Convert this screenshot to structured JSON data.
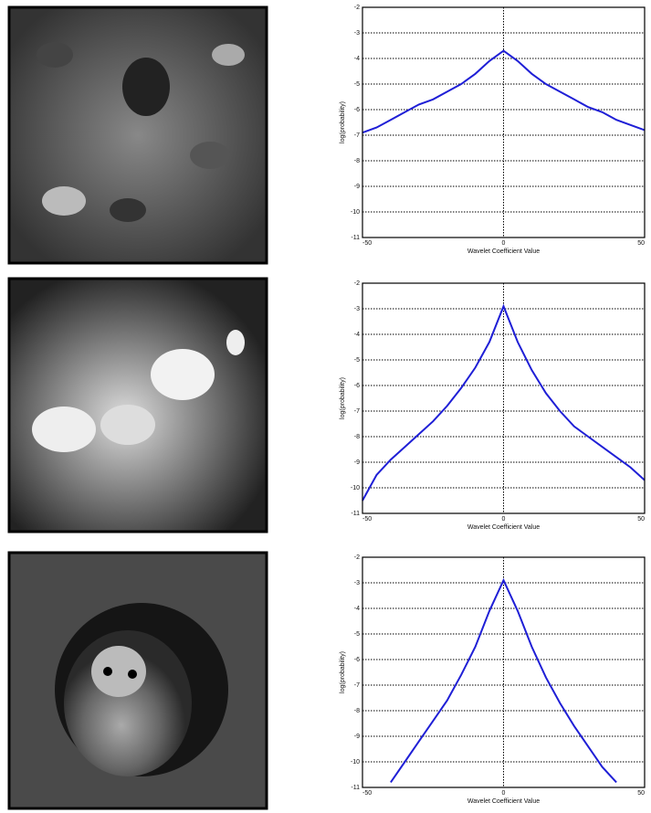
{
  "chart_data": [
    {
      "type": "line",
      "xlabel": "Wavelet Coefficient Value",
      "ylabel": "log(probability)",
      "x": [
        -50,
        -45,
        -40,
        -35,
        -30,
        -25,
        -20,
        -15,
        -10,
        -5,
        0,
        5,
        10,
        15,
        20,
        25,
        30,
        35,
        40,
        45,
        50
      ],
      "values": [
        -6.9,
        -6.7,
        -6.4,
        -6.1,
        -5.8,
        -5.6,
        -5.3,
        -5.0,
        -4.6,
        -4.1,
        -3.7,
        -4.1,
        -4.6,
        -5.0,
        -5.3,
        -5.6,
        -5.9,
        -6.1,
        -6.4,
        -6.6,
        -6.8
      ],
      "color": "#1f1fd6",
      "xlim": [
        -50,
        50
      ],
      "xticks": [
        -50,
        0,
        50
      ],
      "ylim": [
        -11,
        -2
      ],
      "yticks": [
        -2,
        -3,
        -4,
        -5,
        -6,
        -7,
        -8,
        -9,
        -10,
        -11
      ],
      "grid": true
    },
    {
      "type": "line",
      "xlabel": "Wavelet Coefficient Value",
      "ylabel": "log(probability)",
      "x": [
        -50,
        -45,
        -40,
        -35,
        -30,
        -25,
        -20,
        -15,
        -10,
        -5,
        0,
        5,
        10,
        15,
        20,
        25,
        30,
        35,
        40,
        45,
        50
      ],
      "values": [
        -10.5,
        -9.5,
        -8.9,
        -8.4,
        -7.9,
        -7.4,
        -6.8,
        -6.1,
        -5.3,
        -4.3,
        -2.9,
        -4.3,
        -5.4,
        -6.3,
        -7.0,
        -7.6,
        -8.0,
        -8.4,
        -8.8,
        -9.2,
        -9.7
      ],
      "color": "#1f1fd6",
      "xlim": [
        -50,
        50
      ],
      "xticks": [
        -50,
        0,
        50
      ],
      "ylim": [
        -11,
        -2
      ],
      "yticks": [
        -2,
        -3,
        -4,
        -5,
        -6,
        -7,
        -8,
        -9,
        -10,
        -11
      ],
      "grid": true
    },
    {
      "type": "line",
      "xlabel": "Wavelet Coefficient Value",
      "ylabel": "log(probability)",
      "x": [
        -50,
        -45,
        -40,
        -35,
        -30,
        -25,
        -20,
        -15,
        -10,
        -5,
        0,
        5,
        10,
        15,
        20,
        25,
        30,
        35,
        40,
        45,
        50
      ],
      "values": [
        null,
        null,
        -10.8,
        -10.0,
        -9.2,
        -8.4,
        -7.6,
        -6.6,
        -5.5,
        -4.1,
        -2.9,
        -4.1,
        -5.5,
        -6.7,
        -7.7,
        -8.6,
        -9.4,
        -10.2,
        -10.8,
        null,
        null
      ],
      "color": "#1f1fd6",
      "xlim": [
        -50,
        50
      ],
      "xticks": [
        -50,
        0,
        50
      ],
      "ylim": [
        -11,
        -2
      ],
      "yticks": [
        -2,
        -3,
        -4,
        -5,
        -6,
        -7,
        -8,
        -9,
        -10,
        -11
      ],
      "grid": true
    }
  ]
}
